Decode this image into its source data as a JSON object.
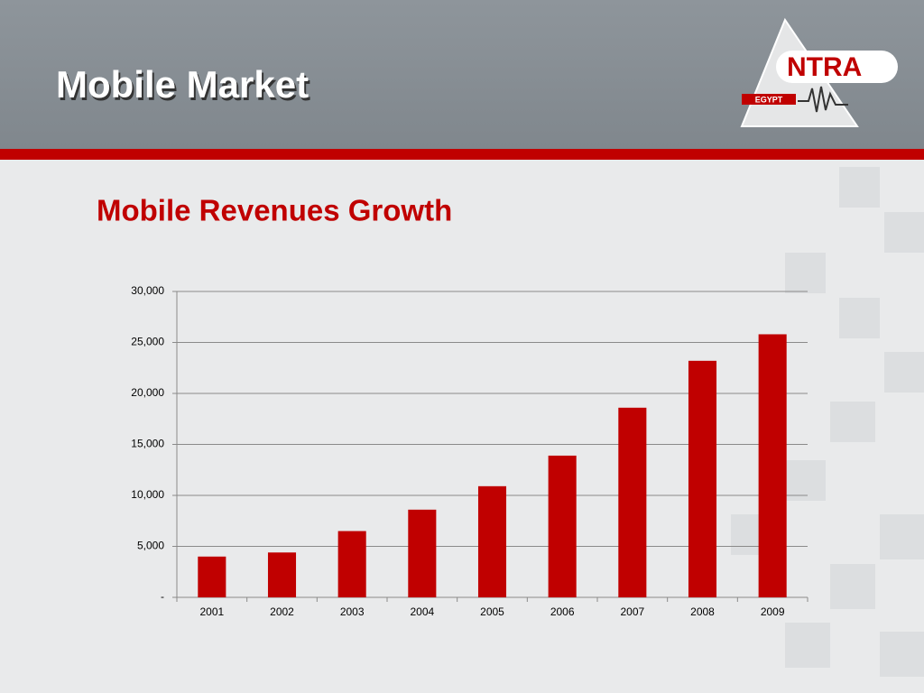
{
  "header": {
    "title": "Mobile Market",
    "logo": "NTRA",
    "logo_sub": "EGYPT"
  },
  "chart_data": {
    "type": "bar",
    "title": "Mobile Revenues Growth",
    "categories": [
      "2001",
      "2002",
      "2003",
      "2004",
      "2005",
      "2006",
      "2007",
      "2008",
      "2009"
    ],
    "values": [
      4000,
      4400,
      6500,
      8600,
      10900,
      13900,
      18600,
      23200,
      25800
    ],
    "color": "#c00000",
    "ylim": [
      0,
      30000
    ],
    "yticks": [
      {
        "value": 0,
        "label": "-"
      },
      {
        "value": 5000,
        "label": "5,000"
      },
      {
        "value": 10000,
        "label": "10,000"
      },
      {
        "value": 15000,
        "label": "15,000"
      },
      {
        "value": 20000,
        "label": "20,000"
      },
      {
        "value": 25000,
        "label": "25,000"
      },
      {
        "value": 30000,
        "label": "30,000"
      }
    ],
    "grid": true
  }
}
